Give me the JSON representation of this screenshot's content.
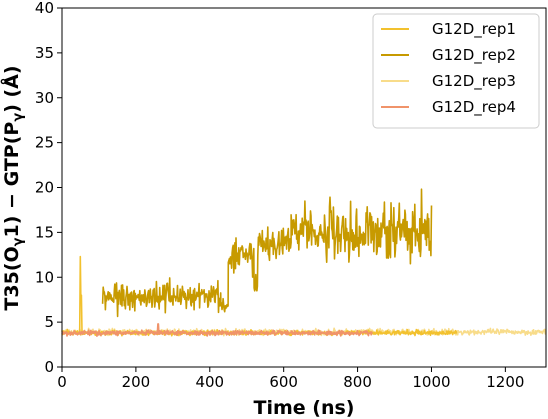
{
  "chart_data": {
    "type": "line",
    "title": "",
    "xlabel": "Time (ns)",
    "ylabel_parts": [
      "T35(O",
      "γ",
      "1) − GTP(P",
      "γ",
      ") (Å)"
    ],
    "xlim": [
      0,
      1310
    ],
    "ylim": [
      0,
      40
    ],
    "xticks": [
      0,
      200,
      400,
      600,
      800,
      1000,
      1200
    ],
    "yticks": [
      0,
      5,
      10,
      15,
      20,
      25,
      30,
      35,
      40
    ],
    "grid": false,
    "legend_position": "top-right",
    "series": [
      {
        "name": "G12D_rep1",
        "color": "#f2c12e",
        "x_range": [
          0,
          1070
        ],
        "base_y": 3.8,
        "noise": 0.25,
        "spikes": [
          [
            50,
            12.3
          ],
          [
            52,
            8.0
          ]
        ]
      },
      {
        "name": "G12D_rep2",
        "color": "#c79a00",
        "x_range": [
          110,
          1000
        ],
        "segments": [
          {
            "x": [
              110,
              430
            ],
            "mean": 7.8,
            "noise": 1.0
          },
          {
            "x": [
              430,
              450
            ],
            "mean": 6.8,
            "noise": 0.6
          },
          {
            "x": [
              450,
              520
            ],
            "mean": 12.2,
            "noise": 1.2
          },
          {
            "x": [
              520,
              530
            ],
            "mean": 8.5,
            "noise": 1.0
          },
          {
            "x": [
              530,
              620
            ],
            "mean": 13.8,
            "noise": 1.3
          },
          {
            "x": [
              620,
              700
            ],
            "mean": 15.5,
            "noise": 1.6
          },
          {
            "x": [
              700,
              1000
            ],
            "mean": 15.0,
            "noise": 2.0
          }
        ]
      },
      {
        "name": "G12D_rep3",
        "color": "#f8dc8a",
        "x_range": [
          0,
          1310
        ],
        "base_y": 3.9,
        "noise": 0.3,
        "spikes": []
      },
      {
        "name": "G12D_rep4",
        "color": "#f0936a",
        "x_range": [
          0,
          840
        ],
        "base_y": 3.8,
        "noise": 0.25,
        "spikes": [
          [
            260,
            4.8
          ]
        ]
      }
    ]
  }
}
